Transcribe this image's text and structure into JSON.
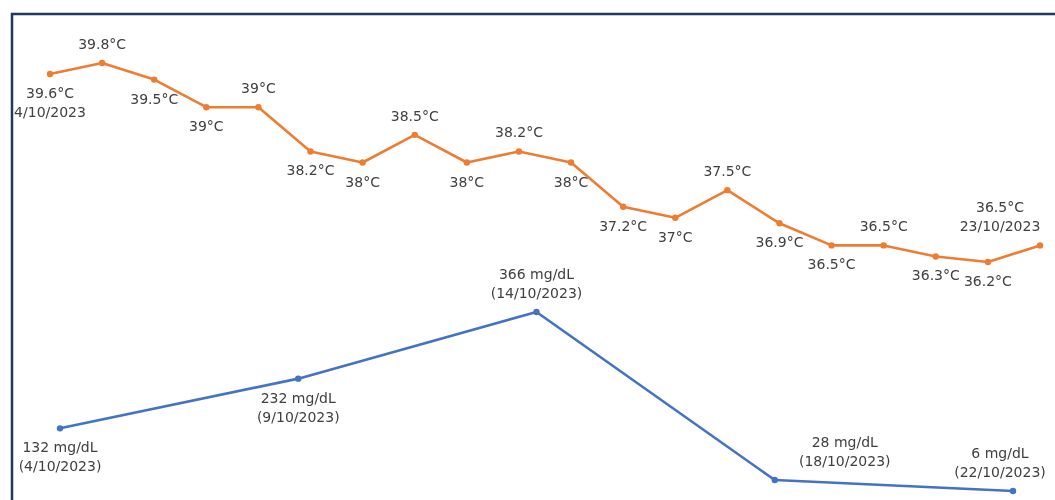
{
  "chart_data": [
    {
      "type": "line",
      "marker": "circle",
      "categories": [
        null,
        null,
        null,
        null,
        null,
        null,
        null,
        null,
        null,
        null,
        null,
        null,
        null,
        null,
        null,
        null,
        null,
        null,
        null,
        null
      ],
      "series": [
        {
          "color": "#ed7d31",
          "values": [
            39.6,
            39.8,
            39.5,
            39,
            39,
            38.2,
            38,
            38.5,
            38,
            38.2,
            38,
            37.2,
            37,
            37.5,
            36.9,
            36.5,
            36.5,
            36.3,
            36.2,
            36.5
          ],
          "value_labels": [
            "39.6°C\n4/10/2023",
            "39.8°C",
            "39.5°C",
            "39°C",
            "39°C",
            "38.2°C",
            "38°C",
            "38.5°C",
            "38°C",
            "38.2°C",
            "38°C",
            "37.2°C",
            "37°C",
            "37.5°C",
            "36.9°C",
            "36.5°C",
            "36.5°C",
            "36.3°C",
            "36.2°C",
            "36.5°C\n23/10/2023"
          ]
        }
      ]
    },
    {
      "type": "line",
      "marker": "circle",
      "categories": [
        null,
        null,
        null,
        null,
        null
      ],
      "series": [
        {
          "color": "#4472c4",
          "values": [
            132,
            232,
            366,
            28,
            6
          ],
          "value_labels": [
            "132 mg/dL\n(4/10/2023)",
            "232 mg/dL\n(9/10/2023)",
            "366 mg/dL\n(14/10/2023)",
            "28 mg/dL\n(18/10/2023)",
            "6 mg/dL\n(22/10/2023)"
          ]
        }
      ]
    }
  ]
}
